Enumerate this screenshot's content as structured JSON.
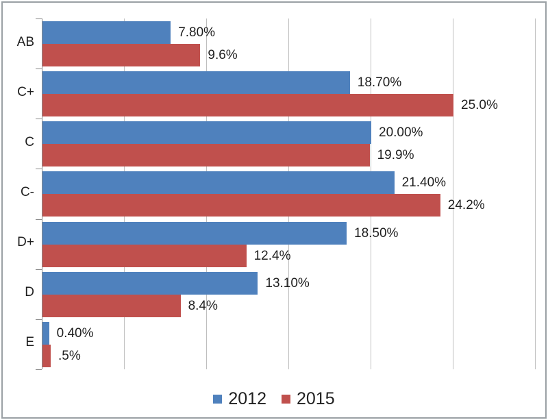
{
  "chart_data": {
    "type": "bar",
    "orientation": "horizontal",
    "title": "",
    "xlabel": "",
    "ylabel": "",
    "categories": [
      "AB",
      "C+",
      "C",
      "C-",
      "D+",
      "D",
      "E"
    ],
    "series": [
      {
        "name": "2012",
        "color": "#4F81BD",
        "values": [
          7.8,
          18.7,
          20.0,
          21.4,
          18.5,
          13.1,
          0.4
        ],
        "labels": [
          "7.80%",
          "18.70%",
          "20.00%",
          "21.40%",
          "18.50%",
          "13.10%",
          "0.40%"
        ]
      },
      {
        "name": "2015",
        "color": "#C0504D",
        "values": [
          9.6,
          25.0,
          19.9,
          24.2,
          12.4,
          8.4,
          0.5
        ],
        "labels": [
          "9.6%",
          "25.0%",
          "19.9%",
          "24.2%",
          "12.4%",
          "8.4%",
          ".5%"
        ]
      }
    ],
    "xlim": [
      0,
      30
    ],
    "grid": true,
    "grid_interval_pct": 5,
    "legend_position": "bottom"
  },
  "legend": {
    "items": [
      {
        "label": "2012",
        "color": "#4F81BD"
      },
      {
        "label": "2015",
        "color": "#C0504D"
      }
    ]
  },
  "colors": {
    "gridline": "#BFBFBF",
    "axis": "#898989",
    "text": "#1F1F1F",
    "frame_border": "#9AA0A4",
    "background": "#FFFFFF"
  }
}
